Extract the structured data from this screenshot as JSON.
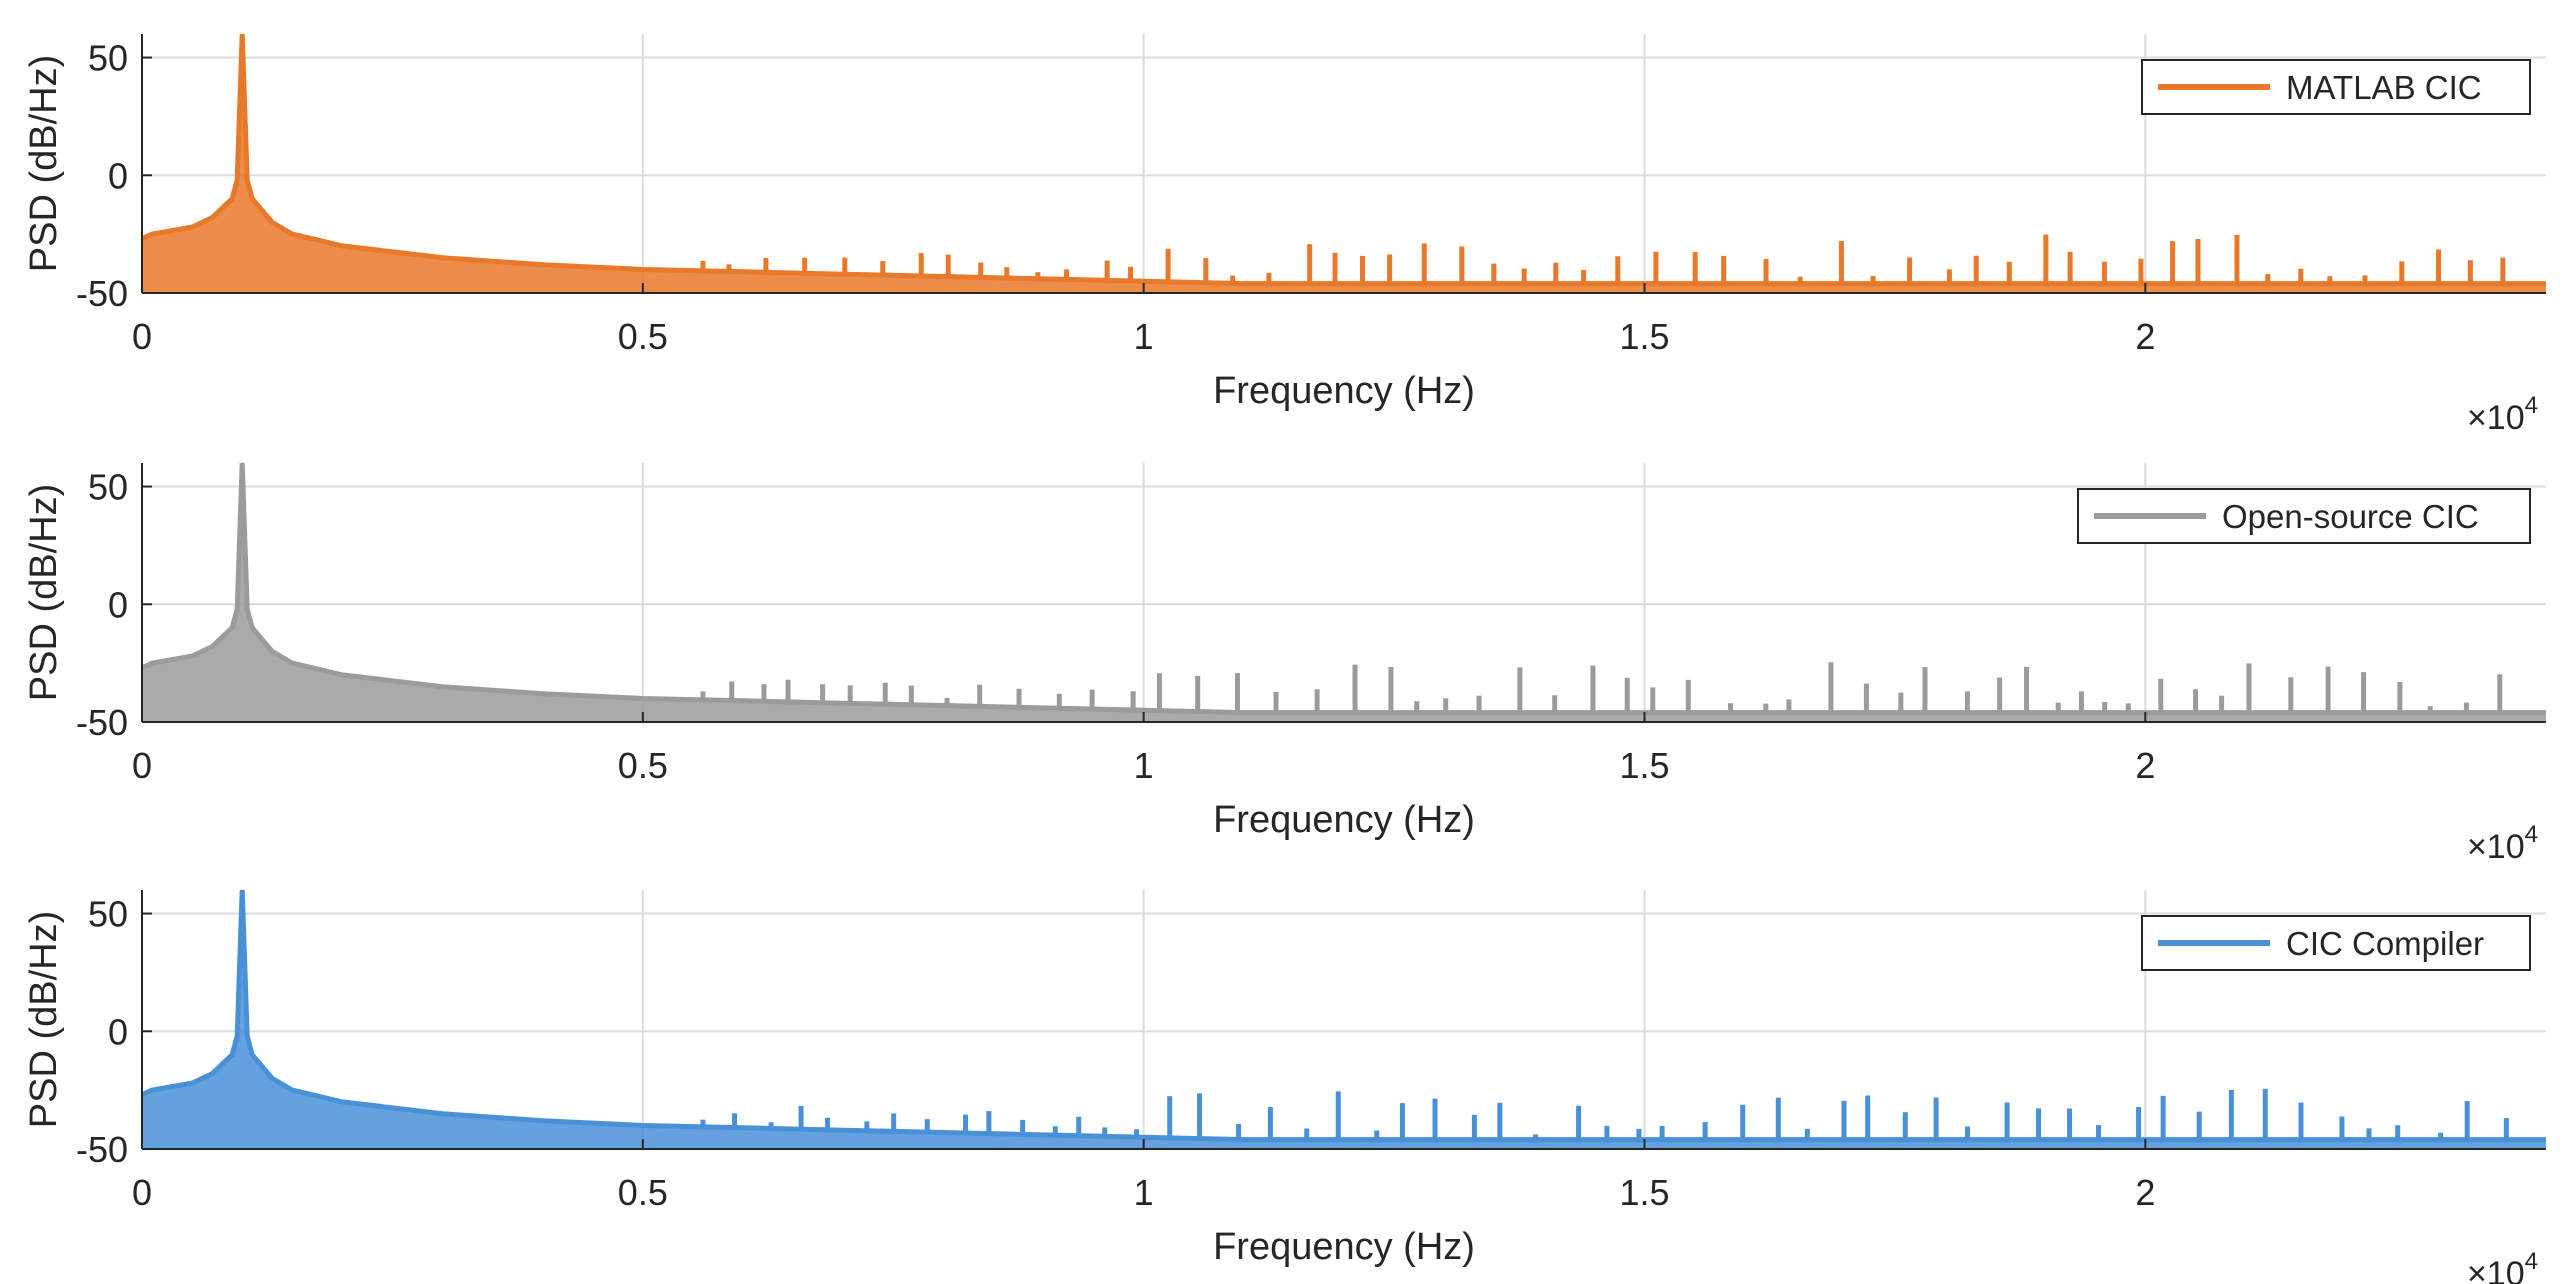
{
  "colors": {
    "matlab": "#e8782a",
    "opensource": "#9b9b9b",
    "compiler": "#4a90d9",
    "grid": "#dcdcdc",
    "axis": "#262626"
  },
  "chart_data": [
    {
      "type": "line",
      "legend": "MATLAB CIC",
      "color": "#e8782a",
      "xlabel": "Frequency (Hz)",
      "ylabel": "PSD (dB/Hz)",
      "x_exponent_base": "×10",
      "x_exponent_power": "4",
      "xlim": [
        0,
        24000
      ],
      "ylim": [
        -50,
        60
      ],
      "xticks": [
        0,
        5000,
        10000,
        15000,
        20000
      ],
      "xtick_labels": [
        "0",
        "0.5",
        "1",
        "1.5",
        "2"
      ],
      "yticks": [
        -50,
        0,
        50
      ],
      "ytick_labels": [
        "-50",
        "0",
        "50"
      ],
      "legend_placement": "top-right",
      "grid": true,
      "series": [
        {
          "name": "MATLAB CIC",
          "x": [
            0,
            100,
            500,
            700,
            900,
            950,
            1000,
            1050,
            1100,
            1300,
            1500,
            2000,
            3000,
            4000,
            5000,
            6000,
            7000,
            8000,
            9000,
            10000,
            11000,
            12000,
            13000,
            14000,
            15000,
            16000,
            17000,
            18000,
            19000,
            20000,
            21000,
            22000,
            23000,
            24000
          ],
          "y": [
            -27,
            -25,
            -22,
            -18,
            -10,
            -2,
            60,
            -2,
            -10,
            -20,
            -25,
            -30,
            -35,
            -38,
            -40,
            -41,
            -42,
            -43,
            -44,
            -45,
            -46,
            -46,
            -46,
            -46,
            -46,
            -46,
            -46,
            -46,
            -46,
            -46,
            -46,
            -46,
            -46,
            -46
          ]
        }
      ]
    },
    {
      "type": "line",
      "legend": "Open-source CIC",
      "color": "#9b9b9b",
      "xlabel": "Frequency (Hz)",
      "ylabel": "PSD (dB/Hz)",
      "x_exponent_base": "×10",
      "x_exponent_power": "4",
      "xlim": [
        0,
        24000
      ],
      "ylim": [
        -50,
        60
      ],
      "xticks": [
        0,
        5000,
        10000,
        15000,
        20000
      ],
      "xtick_labels": [
        "0",
        "0.5",
        "1",
        "1.5",
        "2"
      ],
      "yticks": [
        -50,
        0,
        50
      ],
      "ytick_labels": [
        "-50",
        "0",
        "50"
      ],
      "legend_placement": "top-right",
      "grid": true,
      "series": [
        {
          "name": "Open-source CIC",
          "x": [
            0,
            100,
            500,
            700,
            900,
            950,
            1000,
            1050,
            1100,
            1300,
            1500,
            2000,
            3000,
            4000,
            5000,
            6000,
            7000,
            8000,
            9000,
            10000,
            11000,
            12000,
            13000,
            14000,
            15000,
            16000,
            17000,
            18000,
            19000,
            20000,
            21000,
            22000,
            23000,
            24000
          ],
          "y": [
            -27,
            -25,
            -22,
            -18,
            -10,
            -2,
            60,
            -2,
            -10,
            -20,
            -25,
            -30,
            -35,
            -38,
            -40,
            -41,
            -42,
            -43,
            -44,
            -45,
            -46,
            -46,
            -46,
            -46,
            -46,
            -46,
            -46,
            -46,
            -46,
            -46,
            -46,
            -46,
            -46,
            -46
          ]
        }
      ]
    },
    {
      "type": "line",
      "legend": "CIC Compiler",
      "color": "#4a90d9",
      "xlabel": "Frequency (Hz)",
      "ylabel": "PSD (dB/Hz)",
      "x_exponent_base": "×10",
      "x_exponent_power": "4",
      "xlim": [
        0,
        24000
      ],
      "ylim": [
        -50,
        60
      ],
      "xticks": [
        0,
        5000,
        10000,
        15000,
        20000
      ],
      "xtick_labels": [
        "0",
        "0.5",
        "1",
        "1.5",
        "2"
      ],
      "yticks": [
        -50,
        0,
        50
      ],
      "ytick_labels": [
        "-50",
        "0",
        "50"
      ],
      "legend_placement": "top-right",
      "grid": true,
      "series": [
        {
          "name": "CIC Compiler",
          "x": [
            0,
            100,
            500,
            700,
            900,
            950,
            1000,
            1050,
            1100,
            1300,
            1500,
            2000,
            3000,
            4000,
            5000,
            6000,
            7000,
            8000,
            9000,
            10000,
            11000,
            12000,
            13000,
            14000,
            15000,
            16000,
            17000,
            18000,
            19000,
            20000,
            21000,
            22000,
            23000,
            24000
          ],
          "y": [
            -27,
            -25,
            -22,
            -18,
            -10,
            -2,
            60,
            -2,
            -10,
            -20,
            -25,
            -30,
            -35,
            -38,
            -40,
            -41,
            -42,
            -43,
            -44,
            -45,
            -46,
            -46,
            -46,
            -46,
            -46,
            -46,
            -46,
            -46,
            -46,
            -46,
            -46,
            -46,
            -46,
            -46
          ]
        }
      ]
    }
  ]
}
